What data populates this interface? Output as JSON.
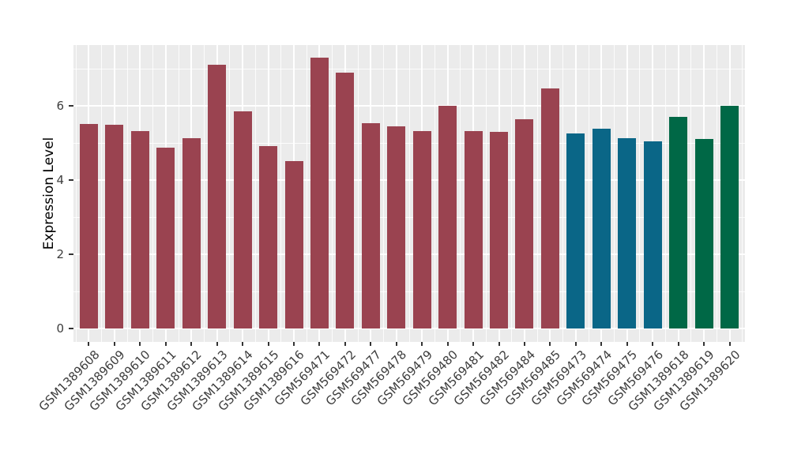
{
  "chart_data": {
    "type": "bar",
    "title": "",
    "ylabel": "Expression Level",
    "xlabel": "",
    "legend": "none",
    "grid": true,
    "panel_bg": "#EBEBEB",
    "grid_color": "#FFFFFF",
    "tick_mark_color": "#333333",
    "axis_text_color": "#3d3d3d",
    "ylim": [
      -0.36,
      7.64
    ],
    "yticks": [
      0,
      2,
      4,
      6
    ],
    "minor_yticks": [
      1,
      3,
      5,
      7
    ],
    "categories": [
      "GSM1389608",
      "GSM1389609",
      "GSM1389610",
      "GSM1389611",
      "GSM1389612",
      "GSM1389613",
      "GSM1389614",
      "GSM1389615",
      "GSM1389616",
      "GSM569471",
      "GSM569472",
      "GSM569477",
      "GSM569478",
      "GSM569479",
      "GSM569480",
      "GSM569481",
      "GSM569482",
      "GSM569484",
      "GSM569485",
      "GSM569473",
      "GSM569474",
      "GSM569475",
      "GSM569476",
      "GSM1389618",
      "GSM1389619",
      "GSM1389620"
    ],
    "values": [
      5.52,
      5.5,
      5.33,
      4.88,
      5.13,
      7.1,
      5.86,
      4.91,
      4.52,
      7.29,
      6.9,
      5.54,
      5.44,
      5.33,
      6.01,
      5.33,
      5.31,
      5.63,
      6.48,
      5.25,
      5.39,
      5.13,
      5.05,
      5.7,
      5.1,
      6.01
    ],
    "colors": [
      "#9A4350",
      "#9A4350",
      "#9A4350",
      "#9A4350",
      "#9A4350",
      "#9A4350",
      "#9A4350",
      "#9A4350",
      "#9A4350",
      "#9A4350",
      "#9A4350",
      "#9A4350",
      "#9A4350",
      "#9A4350",
      "#9A4350",
      "#9A4350",
      "#9A4350",
      "#9A4350",
      "#9A4350",
      "#0A6687",
      "#0A6687",
      "#0A6687",
      "#0A6687",
      "#006846",
      "#006846",
      "#006846"
    ],
    "group_palette": {
      "red": "#9A4350",
      "blue": "#0A6687",
      "green": "#006846"
    }
  }
}
